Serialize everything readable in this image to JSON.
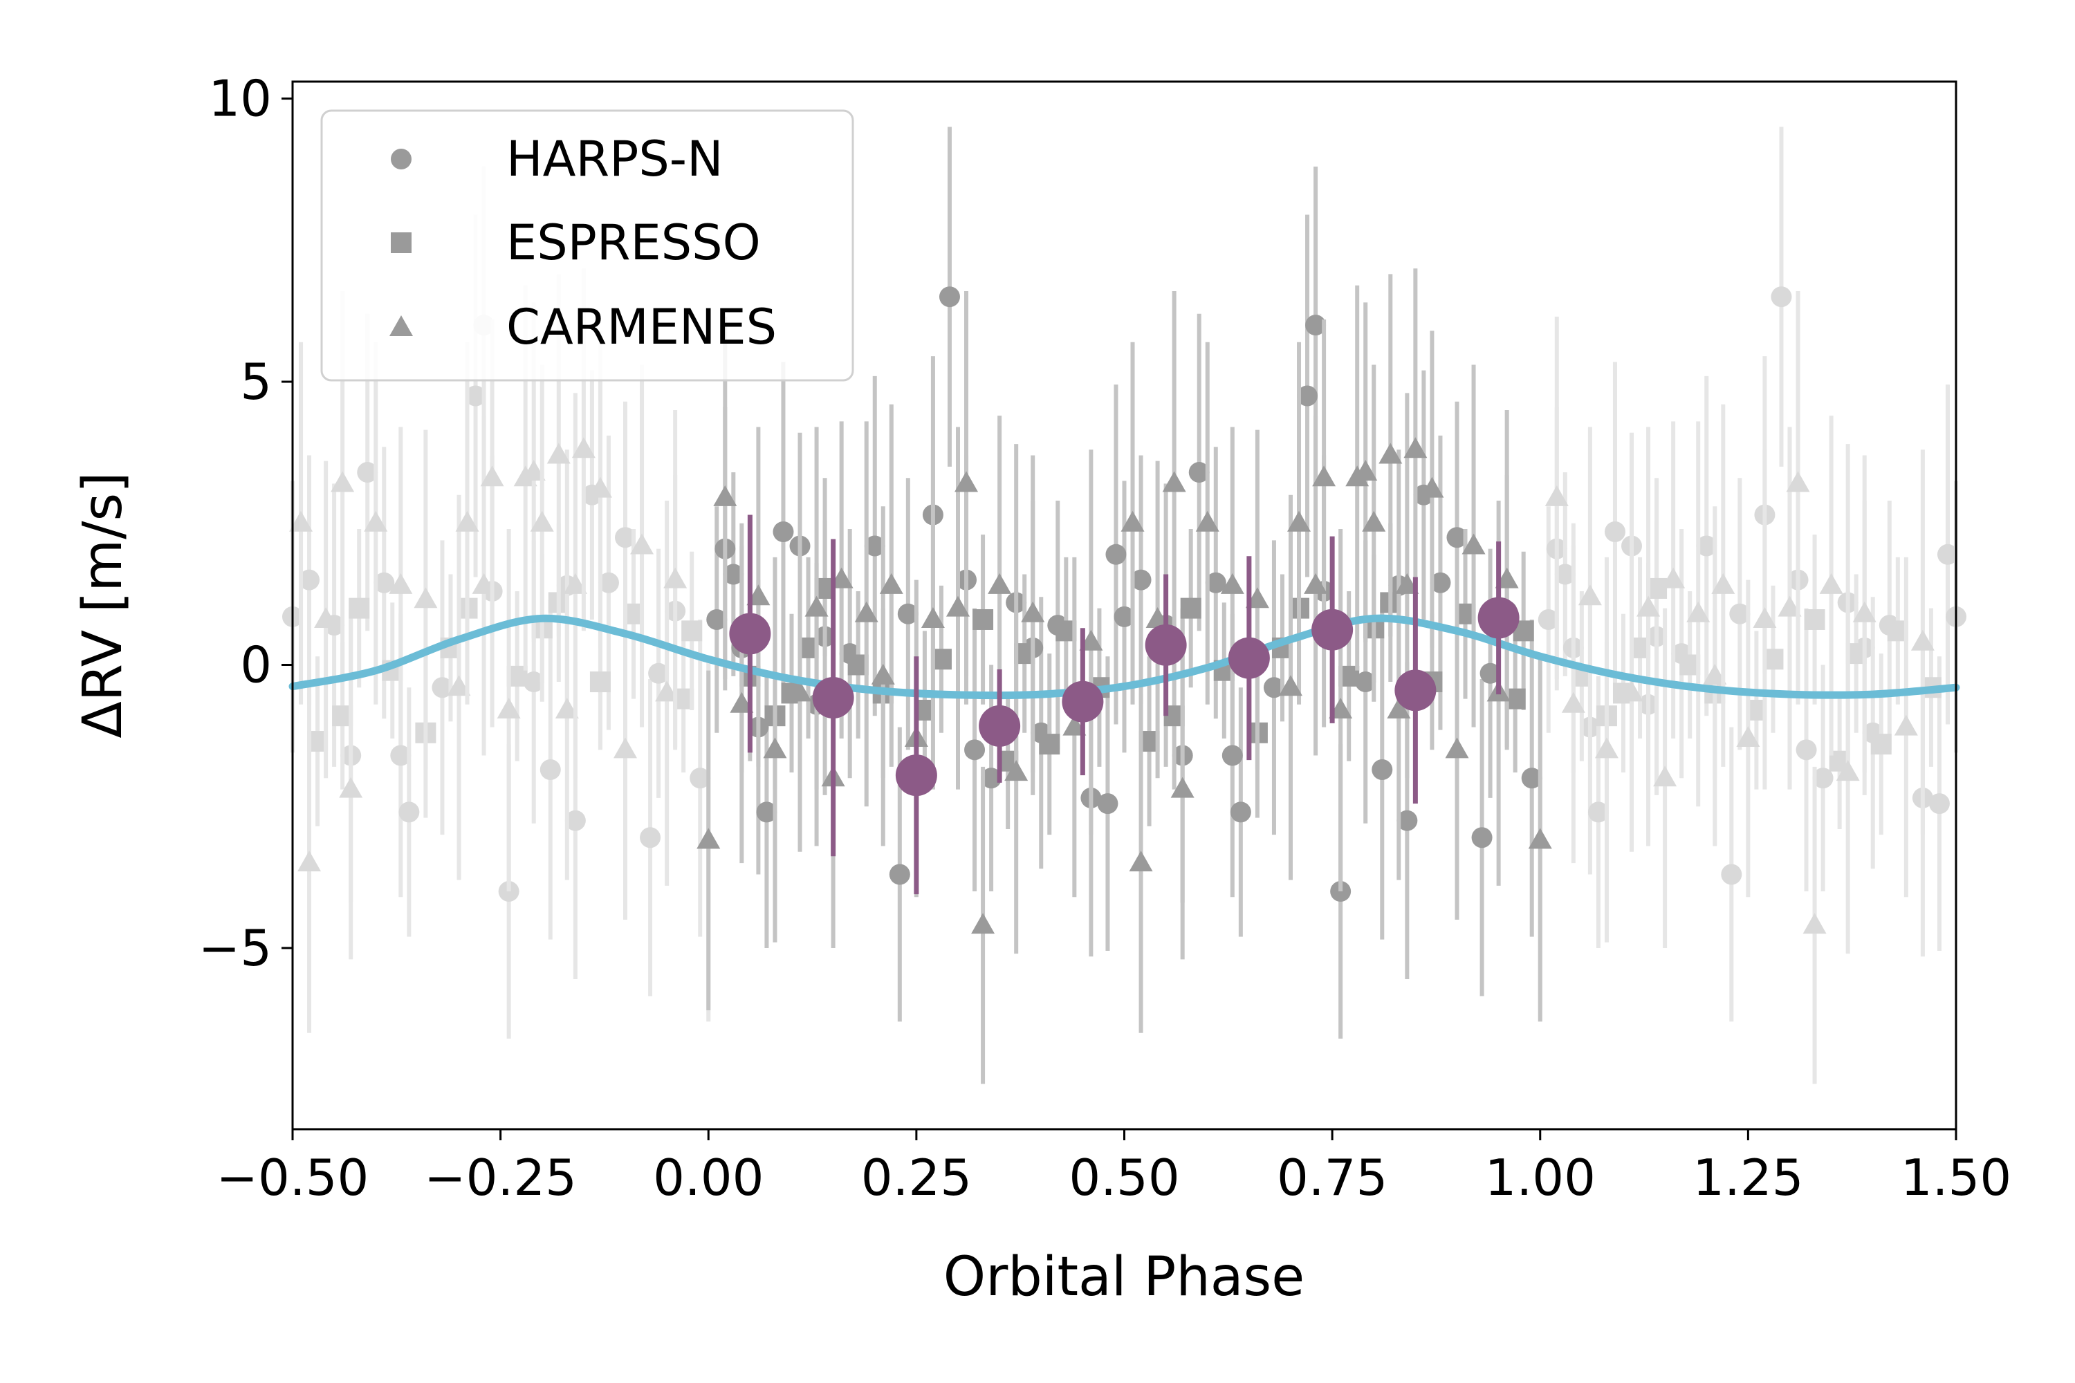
{
  "chart_data": {
    "type": "scatter",
    "title": "",
    "xlabel": "Orbital Phase",
    "ylabel": "ΔRV [m/s]",
    "xlim": [
      -0.5,
      1.5
    ],
    "ylim": [
      -8.2,
      10.3
    ],
    "x_ticks": [
      -0.5,
      -0.25,
      0.0,
      0.25,
      0.5,
      0.75,
      1.0,
      1.25,
      1.5
    ],
    "x_tick_labels": [
      "−0.50",
      "−0.25",
      "0.00",
      "0.25",
      "0.50",
      "0.75",
      "1.00",
      "1.25",
      "1.50"
    ],
    "y_ticks": [
      -5,
      0,
      5,
      10
    ],
    "y_tick_labels": [
      "−5",
      "0",
      "5",
      "10"
    ],
    "legend": {
      "placement": "top-left",
      "entries": [
        {
          "label": "HARPS-N",
          "marker": "circle"
        },
        {
          "label": "ESPRESSO",
          "marker": "square"
        },
        {
          "label": "CARMENES",
          "marker": "triangle"
        }
      ]
    },
    "colors": {
      "raw_points": "#9a9a9a",
      "raw_errorbars": "#c4c4c4",
      "folded_copy_points": "#d9d9d9",
      "folded_copy_errorbars": "#e6e6e6",
      "binned": "#8c5a87",
      "model": "#6bbcd6"
    },
    "model_curve": {
      "description": "Keplerian fit",
      "phase": [
        -0.5,
        -0.4,
        -0.3,
        -0.2,
        -0.1,
        0.0,
        0.1,
        0.2,
        0.3,
        0.4,
        0.5,
        0.6,
        0.7,
        0.8,
        0.9,
        1.0,
        1.1,
        1.2,
        1.3,
        1.4,
        1.5
      ],
      "rv": [
        -0.38,
        -0.1,
        0.45,
        0.82,
        0.55,
        0.1,
        -0.25,
        -0.45,
        -0.53,
        -0.52,
        -0.38,
        -0.05,
        0.45,
        0.82,
        0.6,
        0.15,
        -0.2,
        -0.42,
        -0.52,
        -0.52,
        -0.4
      ]
    },
    "binned_series": {
      "name": "binned",
      "phase": [
        0.05,
        0.15,
        0.25,
        0.35,
        0.45,
        0.55,
        0.65,
        0.75,
        0.85,
        0.95
      ],
      "rv": [
        0.55,
        -0.58,
        -1.95,
        -1.08,
        -0.65,
        0.35,
        0.12,
        0.62,
        -0.45,
        0.83
      ],
      "err": [
        2.1,
        2.8,
        2.1,
        1.0,
        1.3,
        1.25,
        1.8,
        1.65,
        2.0,
        1.35
      ]
    },
    "series": [
      {
        "name": "HARPS-N",
        "marker": "circle",
        "phase": [
          0.01,
          0.02,
          0.03,
          0.04,
          0.06,
          0.07,
          0.09,
          0.11,
          0.13,
          0.14,
          0.17,
          0.2,
          0.23,
          0.24,
          0.27,
          0.29,
          0.31,
          0.32,
          0.34,
          0.37,
          0.39,
          0.4,
          0.42,
          0.46,
          0.48,
          0.49,
          0.5,
          0.52,
          0.55,
          0.57,
          0.59,
          0.61,
          0.63,
          0.64,
          0.68,
          0.72,
          0.73,
          0.74,
          0.76,
          0.79,
          0.81,
          0.83,
          0.84,
          0.86,
          0.88,
          0.9,
          0.93,
          0.94,
          0.96,
          0.99
        ],
        "rv": [
          0.8,
          2.05,
          1.6,
          0.3,
          -1.1,
          -2.6,
          2.35,
          2.1,
          -0.7,
          0.5,
          0.2,
          2.1,
          -3.7,
          0.9,
          2.65,
          6.5,
          1.5,
          -1.5,
          -2.0,
          1.1,
          0.3,
          -1.2,
          0.7,
          -2.35,
          -2.45,
          1.95,
          0.85,
          1.5,
          0.7,
          -1.6,
          3.4,
          1.45,
          -1.6,
          -2.6,
          -0.4,
          4.75,
          6.0,
          1.3,
          -4.0,
          -0.3,
          -1.85,
          1.4,
          -2.75,
          3.0,
          1.45,
          2.25,
          -3.05,
          -0.15,
          0.95,
          -2.0
        ],
        "err": [
          2.0,
          2.5,
          1.8,
          2.2,
          2.6,
          2.4,
          3.0,
          2.0,
          2.5,
          2.8,
          2.2,
          3.0,
          2.6,
          2.4,
          2.8,
          3.0,
          2.2,
          2.5,
          2.0,
          2.8,
          2.6,
          2.4,
          2.2,
          2.8,
          2.6,
          3.0,
          2.4,
          2.2,
          2.5,
          2.6,
          2.8,
          2.4,
          2.5,
          2.2,
          2.6,
          3.2,
          2.8,
          2.4,
          2.6,
          2.5,
          3.0,
          2.4,
          2.8,
          2.2,
          2.6,
          2.4,
          2.8,
          2.2,
          2.4,
          2.8
        ]
      },
      {
        "name": "ESPRESSO",
        "marker": "square",
        "phase": [
          0.05,
          0.08,
          0.1,
          0.12,
          0.14,
          0.18,
          0.21,
          0.26,
          0.28,
          0.33,
          0.36,
          0.38,
          0.41,
          0.43,
          0.47,
          0.53,
          0.56,
          0.58,
          0.62,
          0.66,
          0.69,
          0.71,
          0.77,
          0.8,
          0.82,
          0.87,
          0.91,
          0.97,
          0.98
        ],
        "rv": [
          -0.2,
          -0.9,
          -0.5,
          0.3,
          1.35,
          0.0,
          -0.5,
          -0.8,
          0.1,
          0.8,
          -1.7,
          0.2,
          -1.4,
          0.6,
          -0.4,
          -1.35,
          -0.9,
          1.0,
          -0.1,
          -1.2,
          0.3,
          1.0,
          -0.2,
          0.65,
          1.1,
          -0.3,
          0.9,
          -0.6,
          0.6
        ],
        "err": [
          1.5,
          1.3,
          1.4,
          1.6,
          1.2,
          1.3,
          1.5,
          1.4,
          1.3,
          1.5,
          1.2,
          1.4,
          1.6,
          1.3,
          1.4,
          1.5,
          1.3,
          1.4,
          1.2,
          1.5,
          1.3,
          1.4,
          1.5,
          1.3,
          1.4,
          1.2,
          1.5,
          1.3,
          1.4
        ]
      },
      {
        "name": "CARMENES",
        "marker": "triangle",
        "phase": [
          0.0,
          0.02,
          0.04,
          0.06,
          0.08,
          0.11,
          0.13,
          0.15,
          0.16,
          0.19,
          0.21,
          0.22,
          0.25,
          0.27,
          0.3,
          0.31,
          0.33,
          0.35,
          0.37,
          0.39,
          0.44,
          0.46,
          0.51,
          0.52,
          0.54,
          0.56,
          0.57,
          0.6,
          0.63,
          0.66,
          0.7,
          0.71,
          0.73,
          0.74,
          0.76,
          0.78,
          0.79,
          0.8,
          0.82,
          0.83,
          0.84,
          0.85,
          0.87,
          0.9,
          0.92,
          0.95,
          0.96,
          1.0
        ],
        "rv": [
          -3.1,
          2.95,
          -0.7,
          1.2,
          -1.5,
          -0.5,
          1.0,
          -2.0,
          1.5,
          0.9,
          -0.2,
          1.4,
          -1.3,
          0.8,
          1.0,
          3.2,
          -4.6,
          1.4,
          -1.9,
          0.9,
          -1.1,
          0.4,
          2.5,
          -3.5,
          0.8,
          3.2,
          -2.2,
          2.5,
          1.4,
          1.15,
          -0.4,
          2.5,
          1.4,
          3.3,
          -0.8,
          3.3,
          3.4,
          2.5,
          3.7,
          -0.8,
          1.4,
          3.8,
          3.1,
          -1.5,
          2.1,
          -0.5,
          1.5,
          -3.1
        ],
        "err": [
          3.0,
          3.2,
          2.8,
          3.0,
          3.4,
          2.8,
          3.2,
          3.0,
          2.8,
          3.4,
          3.0,
          3.2,
          2.8,
          3.0,
          3.2,
          3.4,
          2.8,
          3.0,
          3.2,
          2.8,
          3.0,
          3.4,
          3.2,
          3.0,
          2.8,
          3.4,
          3.0,
          3.2,
          2.8,
          3.0,
          3.4,
          3.2,
          3.0,
          2.8,
          3.2,
          3.4,
          3.0,
          2.8,
          3.2,
          3.0,
          3.4,
          3.2,
          2.8,
          3.0,
          3.2,
          3.4,
          3.0,
          3.2
        ]
      }
    ]
  }
}
